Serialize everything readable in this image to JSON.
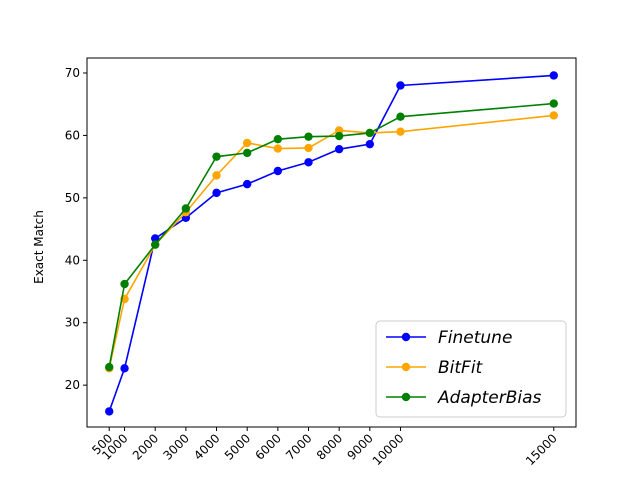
{
  "chart_data": {
    "type": "line",
    "title": "",
    "xlabel": "",
    "ylabel": "Exact Match",
    "x": [
      500,
      1000,
      2000,
      3000,
      4000,
      5000,
      6000,
      7000,
      8000,
      9000,
      10000,
      15000
    ],
    "x_tick_labels": [
      "500",
      "1000",
      "2000",
      "3000",
      "4000",
      "5000",
      "6000",
      "7000",
      "8000",
      "9000",
      "10000",
      "15000"
    ],
    "y_ticks": [
      20,
      30,
      40,
      50,
      60,
      70
    ],
    "xlim": [
      -225,
      15725
    ],
    "ylim": [
      13.3,
      72.4
    ],
    "grid": false,
    "legend_position": "lower-right",
    "series": [
      {
        "name": "Finetune",
        "color": "#0000ff",
        "values": [
          15.8,
          22.7,
          43.5,
          46.8,
          50.8,
          52.2,
          54.3,
          55.7,
          57.8,
          58.6,
          68.0,
          69.6
        ]
      },
      {
        "name": "BitFit",
        "color": "#ffa500",
        "values": [
          22.7,
          33.8,
          42.5,
          47.7,
          53.6,
          58.8,
          57.9,
          58.0,
          60.8,
          60.4,
          60.6,
          63.2
        ]
      },
      {
        "name": "AdapterBias",
        "color": "#008000",
        "values": [
          22.9,
          36.2,
          42.5,
          48.3,
          56.6,
          57.2,
          59.4,
          59.8,
          59.9,
          60.4,
          63.0,
          65.1
        ]
      }
    ]
  }
}
